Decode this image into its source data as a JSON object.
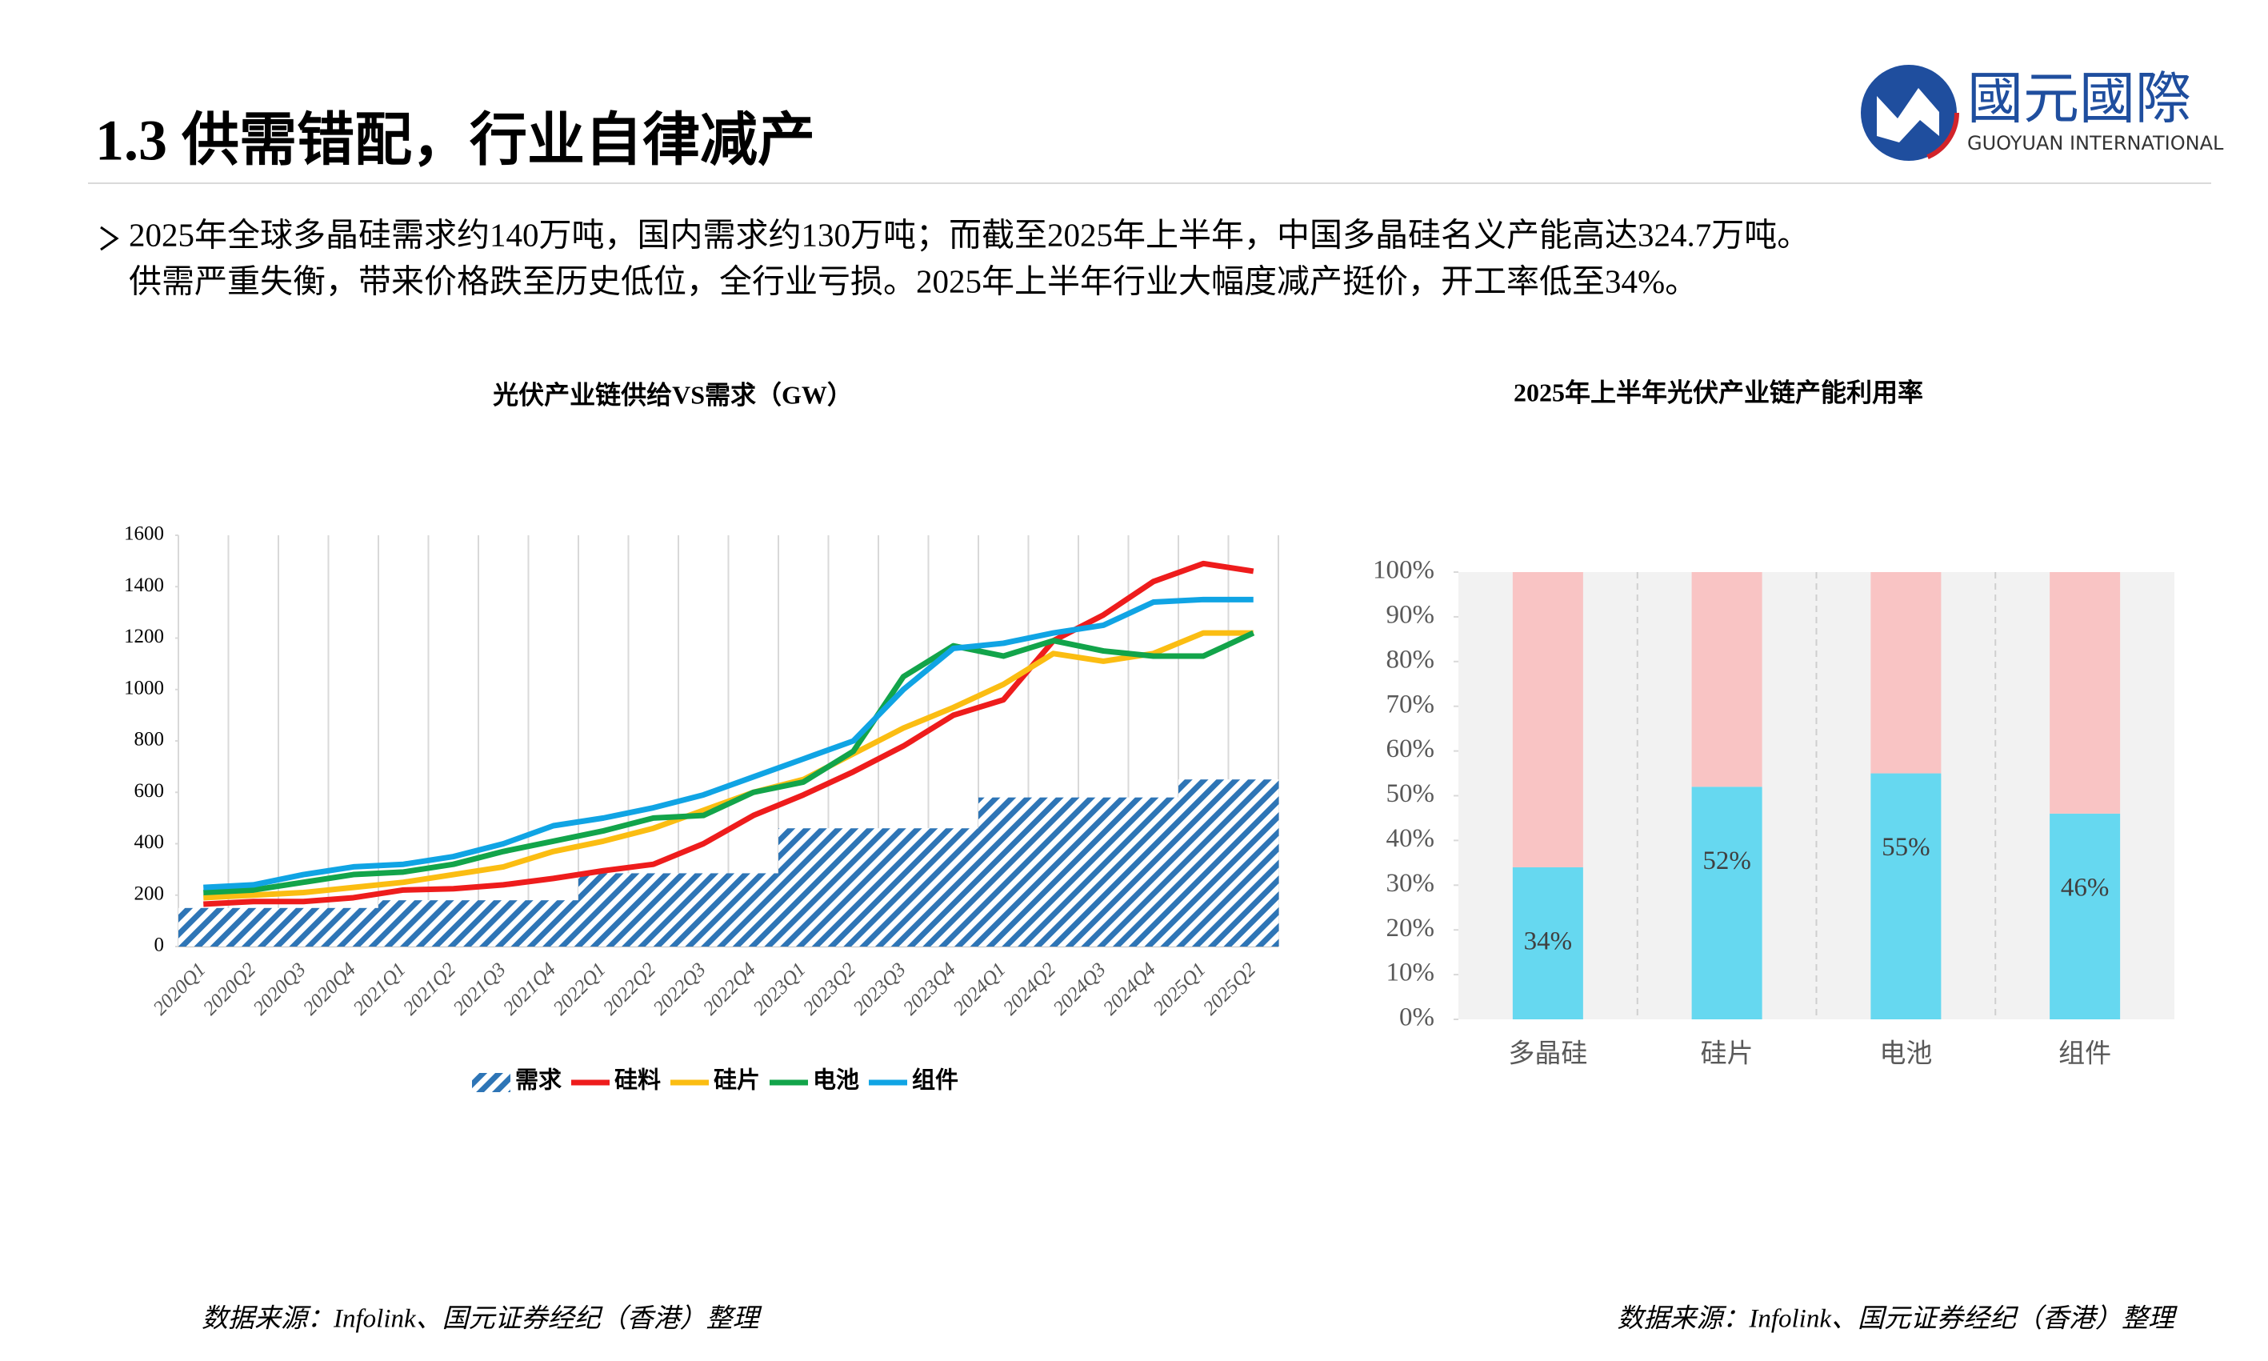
{
  "header": {
    "title": "1.3 供需错配，行业自律减产"
  },
  "logo": {
    "name": "國元國際",
    "subname": "GUOYUAN INTERNATIONAL"
  },
  "bullets": [
    "2025年全球多晶硅需求约140万吨，国内需求约130万吨；而截至2025年上半年，中国多晶硅名义产能高达324.7万吨。",
    "供需严重失衡，带来价格跌至历史低位，全行业亏损。2025年上半年行业大幅度减产挺价，开工率低至34%。"
  ],
  "chart_data": [
    {
      "type": "line",
      "title": "光伏产业链供给VS需求（GW）",
      "categories": [
        "2020Q1",
        "2020Q2",
        "2020Q3",
        "2020Q4",
        "2021Q1",
        "2021Q2",
        "2021Q3",
        "2021Q4",
        "2022Q1",
        "2022Q2",
        "2022Q3",
        "2022Q4",
        "2023Q1",
        "2023Q2",
        "2023Q3",
        "2023Q4",
        "2024Q1",
        "2024Q2",
        "2024Q3",
        "2024Q4",
        "2025Q1",
        "2025Q2"
      ],
      "ylim": [
        0,
        1600
      ],
      "yticks": [
        0,
        200,
        400,
        600,
        800,
        1000,
        1200,
        1400,
        1600
      ],
      "grid": "x",
      "series": [
        {
          "name": "需求",
          "type": "bar",
          "hatch": true,
          "color": "#2e75b6",
          "values": [
            150,
            150,
            150,
            150,
            180,
            180,
            180,
            180,
            285,
            285,
            285,
            285,
            460,
            460,
            460,
            460,
            580,
            580,
            580,
            580,
            650,
            650
          ]
        },
        {
          "name": "硅料",
          "color": "#ee1c1c",
          "values": [
            165,
            175,
            175,
            190,
            220,
            225,
            240,
            265,
            295,
            320,
            400,
            510,
            590,
            680,
            780,
            900,
            960,
            1190,
            1290,
            1420,
            1490,
            1460
          ]
        },
        {
          "name": "硅片",
          "color": "#fbbd12",
          "values": [
            190,
            200,
            210,
            230,
            250,
            280,
            310,
            370,
            410,
            460,
            530,
            600,
            650,
            750,
            850,
            930,
            1020,
            1140,
            1110,
            1140,
            1220,
            1220
          ]
        },
        {
          "name": "电池",
          "color": "#12a44a",
          "values": [
            210,
            220,
            250,
            280,
            290,
            320,
            370,
            410,
            450,
            500,
            510,
            600,
            640,
            760,
            1050,
            1170,
            1130,
            1190,
            1150,
            1130,
            1130,
            1220
          ]
        },
        {
          "name": "组件",
          "color": "#10a4e4",
          "values": [
            230,
            240,
            280,
            310,
            320,
            350,
            400,
            470,
            500,
            540,
            590,
            660,
            730,
            800,
            1000,
            1160,
            1180,
            1220,
            1250,
            1340,
            1350,
            1350
          ]
        }
      ]
    },
    {
      "type": "stacked-bar",
      "title": "2025年上半年光伏产业链产能利用率",
      "categories": [
        "多晶硅",
        "硅片",
        "电池",
        "组件"
      ],
      "ylim": [
        0,
        100
      ],
      "yticks": [
        {
          "value": 0,
          "label": "0%"
        },
        {
          "value": 10,
          "label": "10%"
        },
        {
          "value": 20,
          "label": "20%"
        },
        {
          "value": 30,
          "label": "30%"
        },
        {
          "value": 40,
          "label": "40%"
        },
        {
          "value": 50,
          "label": "50%"
        },
        {
          "value": 60,
          "label": "60%"
        },
        {
          "value": 70,
          "label": "70%"
        },
        {
          "value": 80,
          "label": "80%"
        },
        {
          "value": 90,
          "label": "90%"
        },
        {
          "value": 100,
          "label": "100%"
        }
      ],
      "series": [
        {
          "color": "#66d8f0",
          "values": [
            34,
            52,
            55,
            46
          ],
          "value_labels": [
            "34%",
            "52%",
            "55%",
            "46%"
          ]
        },
        {
          "color": "#f9c4c4",
          "values": [
            66,
            48,
            45,
            54
          ]
        }
      ]
    }
  ],
  "sources": [
    "数据来源：Infolink、国元证券经纪（香港）整理",
    "数据来源：Infolink、国元证券经纪（香港）整理"
  ]
}
